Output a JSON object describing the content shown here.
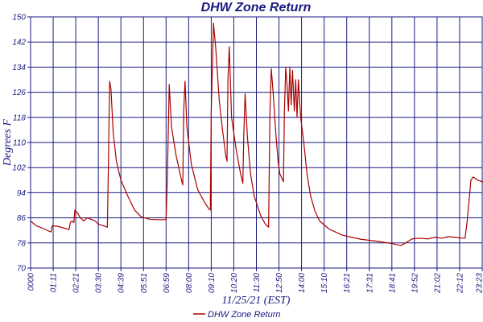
{
  "chart_data": {
    "type": "line",
    "title": "DHW Zone Return",
    "xlabel": "11/25/21 (EST)",
    "ylabel": "Degrees F",
    "ylim": [
      70,
      150
    ],
    "yticks": [
      "70",
      "78",
      "86",
      "94",
      "102",
      "110",
      "118",
      "126",
      "134",
      "142",
      "150"
    ],
    "xticks": [
      "0000",
      "01:11",
      "02:21",
      "03:30",
      "04:39",
      "05:51",
      "06:59",
      "08:00",
      "09:10",
      "10:20",
      "11:30",
      "12:50",
      "14:00",
      "15:10",
      "16:21",
      "17:31",
      "18:41",
      "19:52",
      "21:02",
      "22:12",
      "23:23"
    ],
    "grid": true,
    "legend_position": "bottom",
    "series": [
      {
        "name": "DHW Zone Return",
        "color": "#aa0000",
        "points": [
          [
            0.0,
            85
          ],
          [
            0.012,
            83.5
          ],
          [
            0.03,
            82.5
          ],
          [
            0.04,
            81.8
          ],
          [
            0.045,
            81.5
          ],
          [
            0.048,
            83.5
          ],
          [
            0.06,
            83.3
          ],
          [
            0.08,
            82.5
          ],
          [
            0.085,
            82.2
          ],
          [
            0.088,
            84.5
          ],
          [
            0.092,
            85
          ],
          [
            0.096,
            84.5
          ],
          [
            0.098,
            88.5
          ],
          [
            0.104,
            87.5
          ],
          [
            0.11,
            86
          ],
          [
            0.118,
            85
          ],
          [
            0.125,
            86
          ],
          [
            0.135,
            85.5
          ],
          [
            0.143,
            85
          ],
          [
            0.15,
            84
          ],
          [
            0.165,
            83.3
          ],
          [
            0.17,
            83
          ],
          [
            0.172,
            100
          ],
          [
            0.175,
            129.5
          ],
          [
            0.178,
            127
          ],
          [
            0.183,
            113
          ],
          [
            0.19,
            104
          ],
          [
            0.2,
            98
          ],
          [
            0.215,
            93
          ],
          [
            0.23,
            88.5
          ],
          [
            0.245,
            86.3
          ],
          [
            0.265,
            85.5
          ],
          [
            0.29,
            85.4
          ],
          [
            0.3,
            85.5
          ],
          [
            0.303,
            100
          ],
          [
            0.307,
            128.5
          ],
          [
            0.312,
            115
          ],
          [
            0.322,
            106
          ],
          [
            0.335,
            97.5
          ],
          [
            0.337,
            96.5
          ],
          [
            0.339,
            120
          ],
          [
            0.342,
            129.5
          ],
          [
            0.346,
            115
          ],
          [
            0.356,
            103
          ],
          [
            0.37,
            95
          ],
          [
            0.385,
            91
          ],
          [
            0.395,
            88.8
          ],
          [
            0.398,
            88.5
          ],
          [
            0.4,
            120
          ],
          [
            0.405,
            148
          ],
          [
            0.41,
            140
          ],
          [
            0.418,
            123
          ],
          [
            0.425,
            114
          ],
          [
            0.432,
            106
          ],
          [
            0.435,
            104
          ],
          [
            0.437,
            130
          ],
          [
            0.44,
            140.5
          ],
          [
            0.445,
            118
          ],
          [
            0.455,
            108
          ],
          [
            0.465,
            100
          ],
          [
            0.47,
            97
          ],
          [
            0.472,
            112
          ],
          [
            0.475,
            125.5
          ],
          [
            0.48,
            112
          ],
          [
            0.487,
            100
          ],
          [
            0.495,
            93
          ],
          [
            0.51,
            86.5
          ],
          [
            0.52,
            84
          ],
          [
            0.527,
            83
          ],
          [
            0.53,
            120
          ],
          [
            0.533,
            133.5
          ],
          [
            0.537,
            126
          ],
          [
            0.543,
            113
          ],
          [
            0.548,
            104
          ],
          [
            0.552,
            100
          ],
          [
            0.56,
            97.5
          ],
          [
            0.562,
            120
          ],
          [
            0.565,
            134
          ],
          [
            0.568,
            128
          ],
          [
            0.571,
            120
          ],
          [
            0.574,
            134
          ],
          [
            0.577,
            122
          ],
          [
            0.58,
            133
          ],
          [
            0.584,
            120
          ],
          [
            0.587,
            130
          ],
          [
            0.59,
            118
          ],
          [
            0.593,
            130
          ],
          [
            0.598,
            118
          ],
          [
            0.605,
            110
          ],
          [
            0.612,
            100
          ],
          [
            0.62,
            93
          ],
          [
            0.63,
            88
          ],
          [
            0.64,
            85
          ],
          [
            0.66,
            82.5
          ],
          [
            0.69,
            80.5
          ],
          [
            0.73,
            79.2
          ],
          [
            0.77,
            78.5
          ],
          [
            0.8,
            77.8
          ],
          [
            0.82,
            77.2
          ],
          [
            0.83,
            78
          ],
          [
            0.845,
            79.3
          ],
          [
            0.86,
            79.5
          ],
          [
            0.88,
            79.3
          ],
          [
            0.895,
            79.8
          ],
          [
            0.91,
            79.5
          ],
          [
            0.925,
            80
          ],
          [
            0.94,
            79.8
          ],
          [
            0.955,
            79.5
          ],
          [
            0.962,
            79.5
          ],
          [
            0.966,
            84
          ],
          [
            0.97,
            90
          ],
          [
            0.975,
            98
          ],
          [
            0.98,
            99
          ],
          [
            0.99,
            98
          ],
          [
            1.01,
            97
          ],
          [
            1.03,
            96
          ],
          [
            1.05,
            95.5
          ],
          [
            1.06,
            95.2
          ]
        ]
      }
    ]
  }
}
